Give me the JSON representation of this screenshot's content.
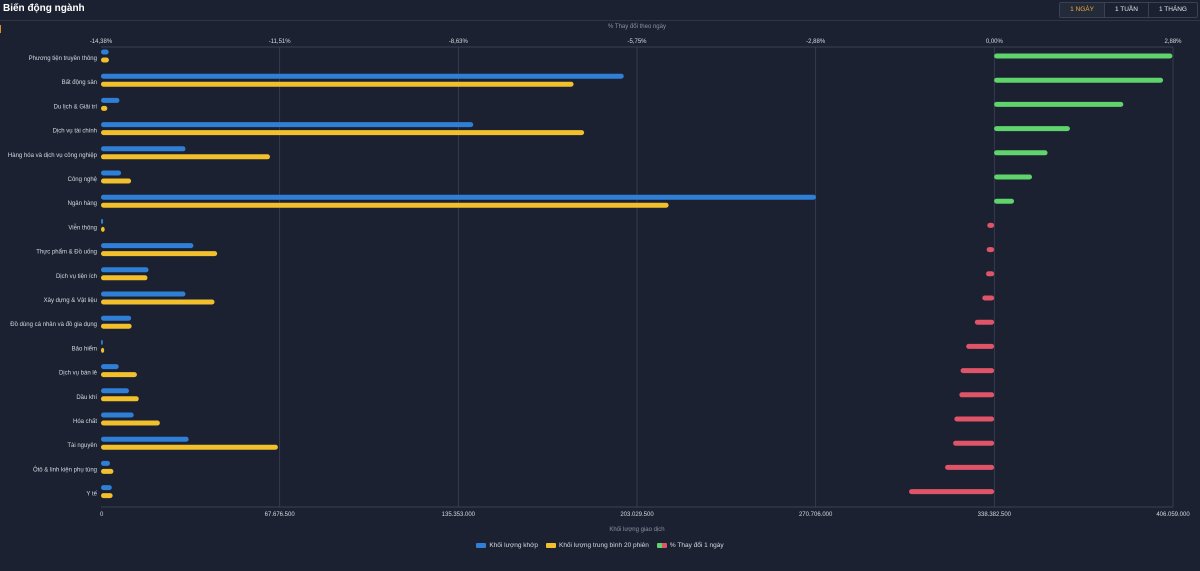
{
  "header": {
    "title": "Biến động ngành",
    "tabs": [
      {
        "label": "1 NGÀY",
        "active": true
      },
      {
        "label": "1 TUẦN",
        "active": false
      },
      {
        "label": "1 THÁNG",
        "active": false
      }
    ]
  },
  "colors": {
    "volume": "#2f7fd6",
    "avg20": "#f2c02c",
    "positive": "#5fd36c",
    "negative": "#e05468",
    "grid": "#3a4253",
    "text": "#d6dae2",
    "muted": "#8a92a3"
  },
  "chart_data": {
    "type": "bar",
    "orientation": "horizontal",
    "top_axis": {
      "label": "% Thay đổi theo ngày",
      "ticks": [
        "-14,38%",
        "-11,51%",
        "-8,63%",
        "-5,75%",
        "-2,88%",
        "0,00%",
        "2,88%"
      ],
      "range": [
        -14.38,
        2.88
      ]
    },
    "bottom_axis": {
      "label": "Khối lượng giao dịch",
      "ticks": [
        "0",
        "67.676.500",
        "135.353.000",
        "203.029.500",
        "270.706.000",
        "338.382.500",
        "406.059.000"
      ],
      "range": [
        0,
        406059000
      ]
    },
    "categories": [
      "Phương tiện truyền thông",
      "Bất động sản",
      "Du lịch & Giải trí",
      "Dịch vụ tài chính",
      "Hàng hóa và dịch vụ công nghiệp",
      "Công nghệ",
      "Ngân hàng",
      "Viễn thông",
      "Thực phẩm & Đồ uống",
      "Dịch vụ tiện ích",
      "Xây dựng & Vật liệu",
      "Đồ dùng cá nhân và đồ gia dụng",
      "Bảo hiểm",
      "Dịch vụ bán lẻ",
      "Dầu khí",
      "Hóa chất",
      "Tài nguyên",
      "Ôtô & linh kiện phụ tùng",
      "Y tế"
    ],
    "series": [
      {
        "name": "Khối lượng khớp",
        "axis": "bottom",
        "values": [
          2900000,
          198000000,
          7000000,
          141000000,
          32000000,
          7600000,
          270800000,
          800000,
          35000000,
          18000000,
          32000000,
          11400000,
          700000,
          6700000,
          10600000,
          12400000,
          33200000,
          3400000,
          4100000
        ]
      },
      {
        "name": "Khối lượng trung bình 20 phiên",
        "axis": "bottom",
        "values": [
          3000000,
          179000000,
          2400000,
          183000000,
          64000000,
          11400000,
          215000000,
          1400000,
          44000000,
          17600000,
          43000000,
          11600000,
          1200000,
          13600000,
          14300000,
          22300000,
          67000000,
          4700000,
          4400000
        ]
      },
      {
        "name": "% Thay đổi 1 ngày",
        "axis": "top",
        "values": [
          2.87,
          2.72,
          2.08,
          1.22,
          0.86,
          0.61,
          0.32,
          -0.11,
          -0.12,
          -0.13,
          -0.19,
          -0.31,
          -0.45,
          -0.54,
          -0.56,
          -0.64,
          -0.66,
          -0.79,
          -1.37
        ]
      }
    ],
    "grid": true,
    "legend_position": "bottom-center"
  }
}
